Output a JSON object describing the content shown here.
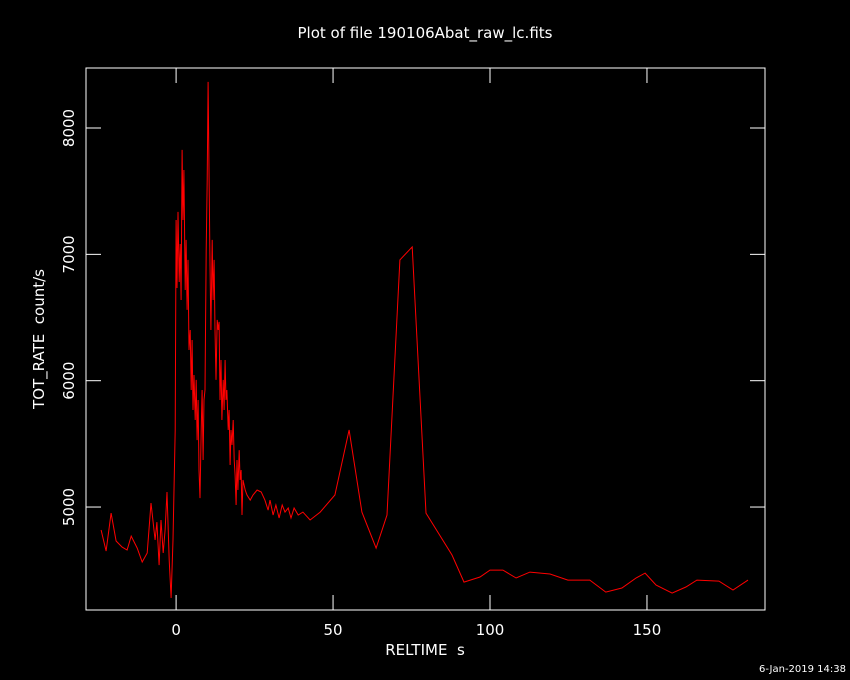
{
  "chart_data": {
    "type": "line",
    "title": "Plot of file 190106Abat_raw_lc.fits",
    "x_label": "RELTIME  s",
    "y_label": "TOT_RATE  count/s",
    "timestamp": "6-Jan-2019 14:38",
    "xlim": [
      -28.7,
      187.6
    ],
    "ylim": [
      4185,
      8475
    ],
    "xticks": [
      0,
      50,
      100,
      150
    ],
    "yticks": [
      5000,
      6000,
      7000,
      8000
    ],
    "color": "#ff0000",
    "x": [
      -23.9,
      -22.3,
      -20.7,
      -19.1,
      -17.2,
      -15.6,
      -14.3,
      -12.4,
      -10.8,
      -9.2,
      -8.0,
      -6.7,
      -6.1,
      -5.4,
      -4.8,
      -4.1,
      -3.5,
      -2.9,
      -2.2,
      -1.6,
      -1.0,
      -0.3,
      0,
      0.3,
      0.6,
      1.0,
      1.3,
      1.6,
      1.9,
      2.2,
      2.5,
      2.9,
      3.2,
      3.5,
      3.8,
      4.1,
      4.5,
      4.8,
      5.1,
      5.4,
      5.7,
      6.1,
      6.4,
      6.7,
      7.0,
      7.3,
      7.6,
      8.0,
      8.3,
      8.6,
      8.9,
      9.2,
      9.6,
      9.9,
      10.2,
      10.5,
      10.8,
      11.1,
      11.5,
      11.8,
      12.1,
      12.4,
      12.7,
      13.1,
      13.4,
      13.7,
      14.0,
      14.3,
      14.6,
      15.0,
      15.3,
      15.6,
      15.9,
      16.2,
      16.6,
      16.9,
      17.2,
      17.5,
      17.8,
      18.2,
      18.5,
      18.8,
      19.1,
      19.4,
      19.7,
      20.1,
      20.4,
      20.7,
      21.0,
      21.3,
      22.0,
      22.6,
      23.6,
      24.5,
      25.8,
      27.1,
      28.3,
      29.3,
      29.9,
      30.9,
      31.8,
      32.8,
      33.8,
      34.7,
      35.7,
      36.6,
      37.6,
      38.9,
      40.4,
      42.7,
      45.9,
      50.6,
      55.1,
      59.2,
      63.7,
      67.2,
      71.3,
      75.2,
      79.6,
      87.9,
      91.7,
      96.8,
      100.0,
      104.1,
      108.3,
      112.7,
      119.1,
      124.8,
      131.8,
      136.9,
      142.0,
      146.5,
      149.4,
      152.9,
      158.0,
      162.4,
      165.9,
      172.9,
      177.4,
      182.2
    ],
    "values": [
      4818,
      4652,
      4952,
      4731,
      4683,
      4660,
      4770,
      4675,
      4565,
      4636,
      5032,
      4739,
      4881,
      4540,
      4897,
      4636,
      4818,
      5119,
      4580,
      4280,
      4739,
      5610,
      7272,
      6734,
      7336,
      6781,
      7082,
      6639,
      7827,
      7272,
      7668,
      6718,
      7114,
      6560,
      6956,
      6243,
      6401,
      5926,
      6322,
      5768,
      6045,
      5689,
      6006,
      5530,
      5847,
      5293,
      5071,
      5610,
      5926,
      5372,
      5847,
      5926,
      7035,
      7589,
      8365,
      7589,
      6916,
      6401,
      7114,
      6639,
      6956,
      6401,
      6006,
      6481,
      6401,
      6465,
      5847,
      6164,
      5689,
      6006,
      5768,
      6164,
      5847,
      5926,
      5610,
      5768,
      5333,
      5610,
      5491,
      5689,
      5372,
      5253,
      5016,
      5372,
      5135,
      5451,
      5214,
      5293,
      4937,
      5214,
      5135,
      5095,
      5055,
      5095,
      5135,
      5119,
      5055,
      4976,
      5055,
      4937,
      5016,
      4913,
      5016,
      4960,
      4992,
      4913,
      4992,
      4937,
      4960,
      4897,
      4960,
      5095,
      5610,
      4960,
      4675,
      4937,
      6956,
      7059,
      4952,
      4620,
      4406,
      4446,
      4501,
      4501,
      4438,
      4485,
      4470,
      4422,
      4422,
      4327,
      4359,
      4438,
      4477,
      4382,
      4319,
      4367,
      4422,
      4414,
      4343,
      4422
    ]
  }
}
